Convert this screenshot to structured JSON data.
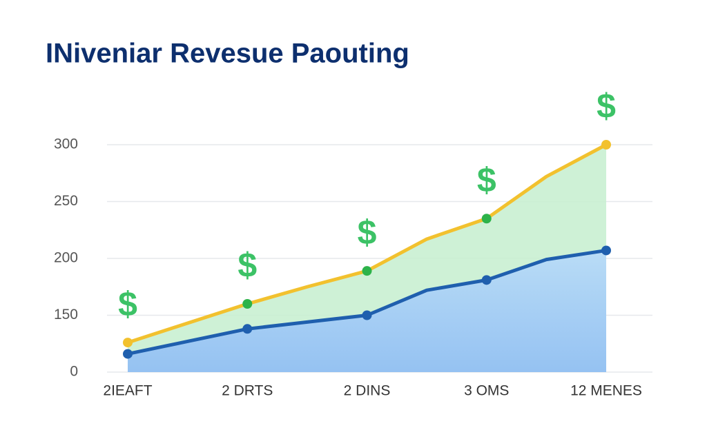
{
  "chart_data": {
    "type": "area-line",
    "title": "INiveniar Revesue Paouting",
    "categories": [
      "2IEAFT",
      null,
      "2 DRTS",
      null,
      "2 DINS",
      null,
      "3 OMS",
      null,
      "12 MENES"
    ],
    "series": [
      {
        "color": "#f2c12e",
        "fill": "#c6efcf",
        "marker_color": "#2db34a",
        "values": [
          126,
          143,
          160,
          175,
          189,
          217,
          235,
          272,
          300
        ]
      },
      {
        "color": "#1f5fae",
        "fill": "#a9cff5",
        "marker_color": "#1f5fae",
        "values": [
          116,
          127,
          138,
          144,
          150,
          172,
          181,
          199,
          207
        ]
      }
    ],
    "annotations": [
      "$",
      "$",
      "$",
      "$",
      "$"
    ],
    "ylim": [
      100,
      300
    ],
    "yticks": [
      {
        "value": 100,
        "label": "0"
      },
      150,
      200,
      250,
      300
    ],
    "grid": true
  }
}
